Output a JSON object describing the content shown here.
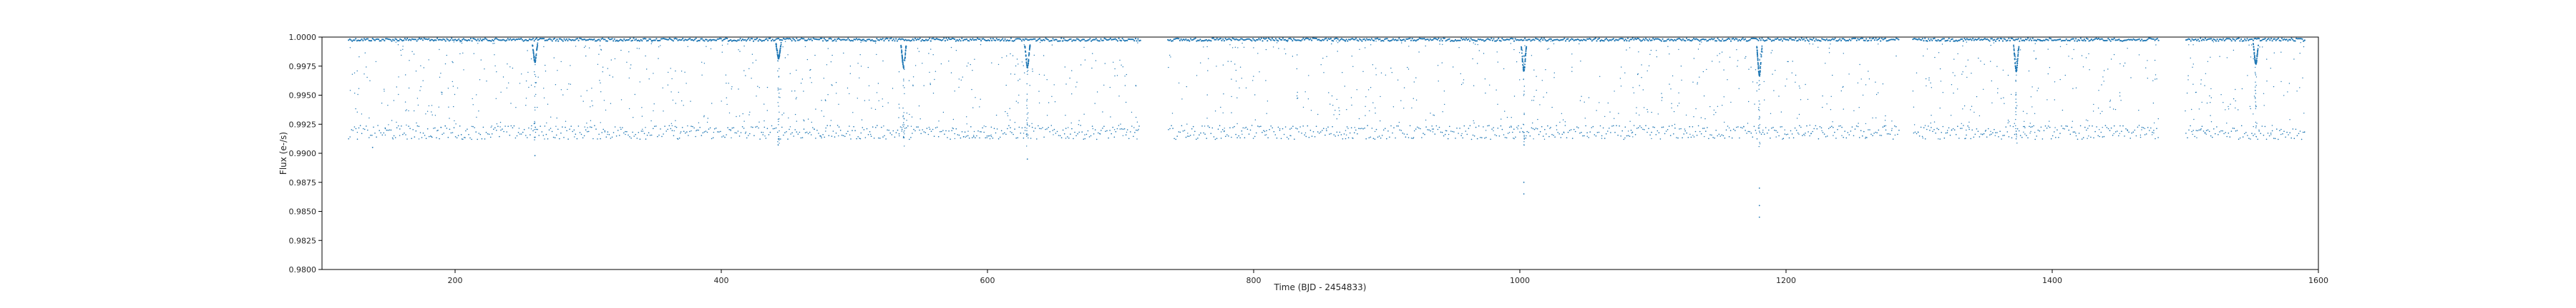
{
  "chart_data": {
    "type": "scatter",
    "title": "",
    "xlabel": "Time (BJD - 2454833)",
    "ylabel": "Flux (e-/s)",
    "xlim": [
      100,
      1600
    ],
    "ylim": [
      0.98,
      1.0
    ],
    "x_ticks": [
      200,
      400,
      600,
      800,
      1000,
      1200,
      1400,
      1600
    ],
    "y_ticks": [
      0.98,
      0.9825,
      0.985,
      0.9875,
      0.99,
      0.9925,
      0.995,
      0.9975,
      1.0
    ],
    "y_tick_labels": [
      "0.9800",
      "0.9825",
      "0.9850",
      "0.9875",
      "0.9900",
      "0.9925",
      "0.9950",
      "0.9975",
      "1.0000"
    ],
    "grid": false,
    "marker_color": "#1f77b4",
    "series": [
      {
        "baseline": 0.9999,
        "x_range": [
          120,
          1590
        ],
        "gaps": [
          [
            715,
            735
          ],
          [
            1285,
            1295
          ],
          [
            1480,
            1500
          ]
        ],
        "lower_band": 0.9918,
        "transits": [
          {
            "x": 260,
            "depth": 0.998
          },
          {
            "x": 443,
            "depth": 0.9983
          },
          {
            "x": 537,
            "depth": 0.9975
          },
          {
            "x": 630,
            "depth": 0.9975
          },
          {
            "x": 1003,
            "depth": 0.9972
          },
          {
            "x": 1180,
            "depth": 0.9968
          },
          {
            "x": 1373,
            "depth": 0.9972
          },
          {
            "x": 1553,
            "depth": 0.9978
          }
        ]
      }
    ]
  }
}
